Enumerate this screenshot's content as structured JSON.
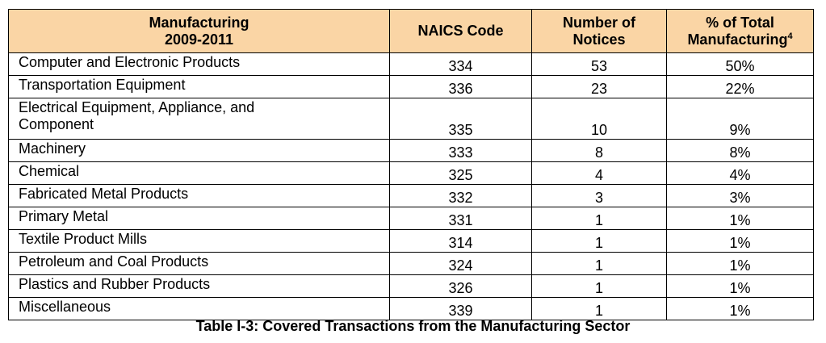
{
  "table": {
    "headers": {
      "col1_line1": "Manufacturing",
      "col1_line2": "2009-2011",
      "col2": "NAICS Code",
      "col3_line1": "Number of",
      "col3_line2": "Notices",
      "col4_line1": "% of Total",
      "col4_line2": "Manufacturing",
      "col4_footnote": "4"
    },
    "rows": [
      {
        "name": "Computer and Electronic Products",
        "naics": "334",
        "notices": "53",
        "percent": "50%"
      },
      {
        "name": "Transportation Equipment",
        "naics": "336",
        "notices": "23",
        "percent": "22%"
      },
      {
        "name_line1": "Electrical Equipment, Appliance, and",
        "name_line2": "Component",
        "naics": "335",
        "notices": "10",
        "percent": "9%"
      },
      {
        "name": "Machinery",
        "naics": "333",
        "notices": "8",
        "percent": "8%"
      },
      {
        "name": "Chemical",
        "naics": "325",
        "notices": "4",
        "percent": "4%"
      },
      {
        "name": "Fabricated Metal Products",
        "naics": "332",
        "notices": "3",
        "percent": "3%"
      },
      {
        "name": "Primary Metal",
        "naics": "331",
        "notices": "1",
        "percent": "1%"
      },
      {
        "name": "Textile Product Mills",
        "naics": "314",
        "notices": "1",
        "percent": "1%"
      },
      {
        "name": "Petroleum and Coal Products",
        "naics": "324",
        "notices": "1",
        "percent": "1%"
      },
      {
        "name": "Plastics and Rubber Products",
        "naics": "326",
        "notices": "1",
        "percent": "1%"
      },
      {
        "name": "Miscellaneous",
        "naics": "339",
        "notices": "1",
        "percent": "1%"
      }
    ]
  },
  "caption": "Table I-3: Covered Transactions from the Manufacturing Sector"
}
